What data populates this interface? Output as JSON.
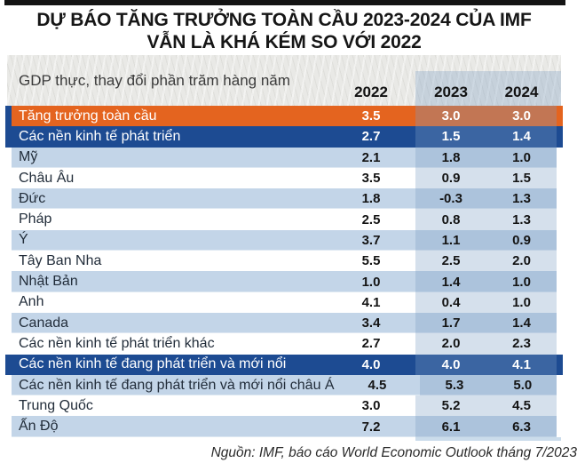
{
  "title": {
    "line1": "DỰ BÁO TĂNG TRƯỞNG TOÀN CẦU 2023-2024 CỦA IMF",
    "line2": "VẪN LÀ KHÁ KÉM SO VỚI 2022"
  },
  "table_note": "GDP thực, thay đổi phần trăm hàng năm",
  "source": "Nguồn: IMF, báo cáo World Economic Outlook tháng 7/2023",
  "colors": {
    "orange_row": "#E4641F",
    "navy_row": "#1D4B92",
    "light_blue_row": "#C3D5E8",
    "forecast_band_tint": "rgba(125,160,195,0.32)",
    "header_panel_gray": "#E9E9E6",
    "top_bar_black": "#141414"
  },
  "chart_data": {
    "type": "table",
    "title": "DỰ BÁO TĂNG TRƯỞNG TOÀN CẦU 2023-2024 CỦA IMF VẪN LÀ KHÁ KÉM SO VỚI 2022",
    "unit_note": "GDP thực, thay đổi phần trăm hàng năm",
    "columns": [
      "2022",
      "2023",
      "2024"
    ],
    "rows": [
      {
        "label": "Tăng trưởng toàn cầu",
        "values": [
          3.5,
          3.0,
          3.0
        ],
        "style": "orange"
      },
      {
        "label": "Các nền kinh tế phát triển",
        "values": [
          2.7,
          1.5,
          1.4
        ],
        "style": "navy"
      },
      {
        "label": "Mỹ",
        "values": [
          2.1,
          1.8,
          1.0
        ],
        "style": "blue"
      },
      {
        "label": "Châu Âu",
        "values": [
          3.5,
          0.9,
          1.5
        ],
        "style": "white"
      },
      {
        "label": "Đức",
        "values": [
          1.8,
          -0.3,
          1.3
        ],
        "style": "blue"
      },
      {
        "label": "Pháp",
        "values": [
          2.5,
          0.8,
          1.3
        ],
        "style": "white"
      },
      {
        "label": "Ý",
        "values": [
          3.7,
          1.1,
          0.9
        ],
        "style": "blue"
      },
      {
        "label": "Tây Ban Nha",
        "values": [
          5.5,
          2.5,
          2.0
        ],
        "style": "white"
      },
      {
        "label": "Nhật Bản",
        "values": [
          1.0,
          1.4,
          1.0
        ],
        "style": "blue"
      },
      {
        "label": "Anh",
        "values": [
          4.1,
          0.4,
          1.0
        ],
        "style": "white"
      },
      {
        "label": "Canada",
        "values": [
          3.4,
          1.7,
          1.4
        ],
        "style": "blue"
      },
      {
        "label": "Các nền kinh tế phát triển khác",
        "values": [
          2.7,
          2.0,
          2.3
        ],
        "style": "white"
      },
      {
        "label": "Các nền kinh tế đang phát triển và mới nổi",
        "values": [
          4.0,
          4.0,
          4.1
        ],
        "style": "navy"
      },
      {
        "label": "Các nền kinh tế đang phát triển và mới nổi châu Á",
        "values": [
          4.5,
          5.3,
          5.0
        ],
        "style": "blue"
      },
      {
        "label": "Trung Quốc",
        "values": [
          3.0,
          5.2,
          4.5
        ],
        "style": "white"
      },
      {
        "label": "Ấn Độ",
        "values": [
          7.2,
          6.1,
          6.3
        ],
        "style": "blue"
      }
    ]
  }
}
